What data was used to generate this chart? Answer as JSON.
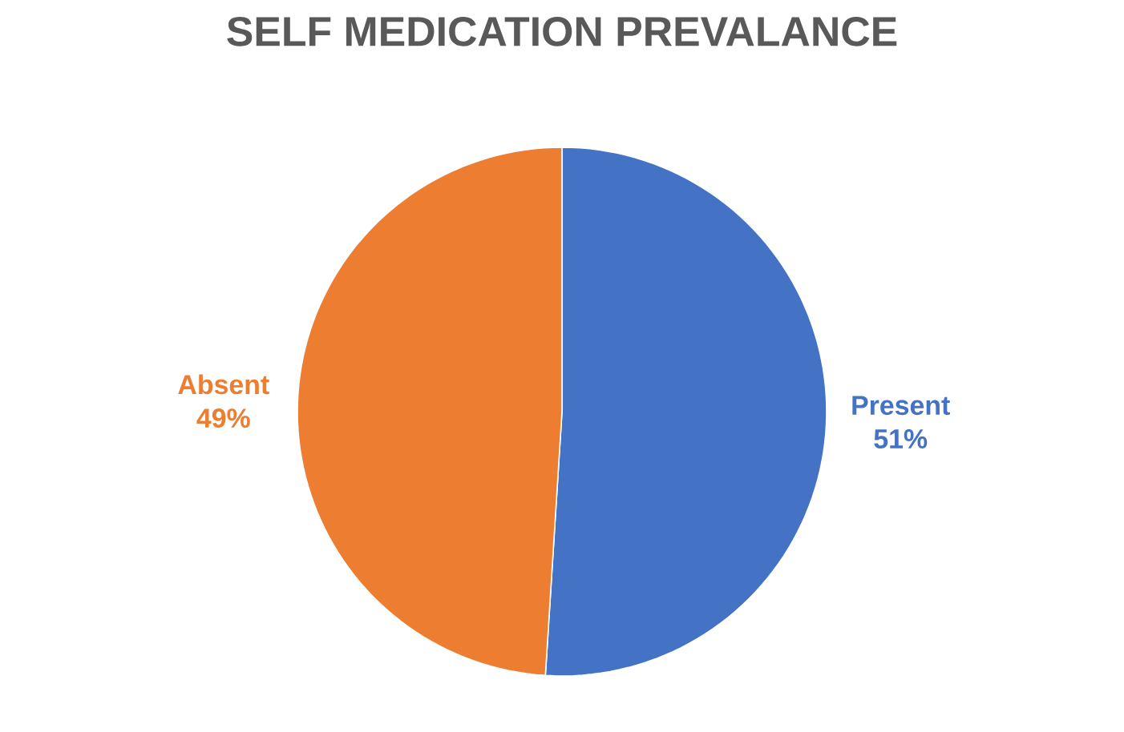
{
  "chart_data": {
    "type": "pie",
    "title": "SELF MEDICATION PREVALANCE",
    "categories": [
      "Present",
      "Absent"
    ],
    "values": [
      51,
      49
    ],
    "colors": [
      "#4472c4",
      "#ed7d31"
    ],
    "value_labels": [
      "51%",
      "49%"
    ]
  }
}
